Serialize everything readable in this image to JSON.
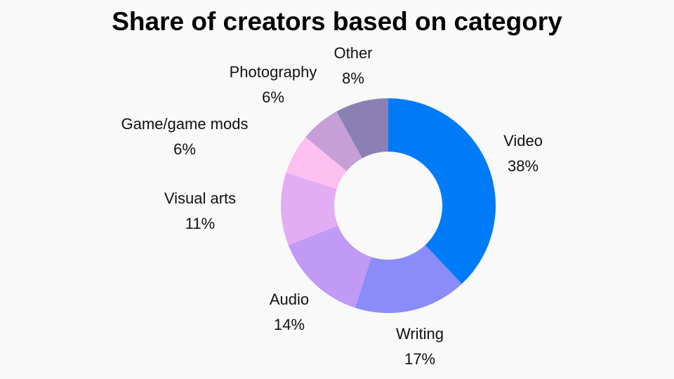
{
  "chart_data": {
    "type": "pie",
    "donut": true,
    "title": "Share of creators based on category",
    "start": "top",
    "direction": "clockwise",
    "slices": [
      {
        "label": "Video",
        "value": 38,
        "value_label": "38%",
        "color": "#007bf8"
      },
      {
        "label": "Writing",
        "value": 17,
        "value_label": "17%",
        "color": "#8a8cf9"
      },
      {
        "label": "Audio",
        "value": 14,
        "value_label": "14%",
        "color": "#c09af4"
      },
      {
        "label": "Visual arts",
        "value": 11,
        "value_label": "11%",
        "color": "#e3adf3"
      },
      {
        "label": "Game/game mods",
        "value": 6,
        "value_label": "6%",
        "color": "#fdc0f1"
      },
      {
        "label": "Photography",
        "value": 6,
        "value_label": "6%",
        "color": "#c59fd6"
      },
      {
        "label": "Other",
        "value": 8,
        "value_label": "8%",
        "color": "#8a80b4"
      }
    ]
  }
}
